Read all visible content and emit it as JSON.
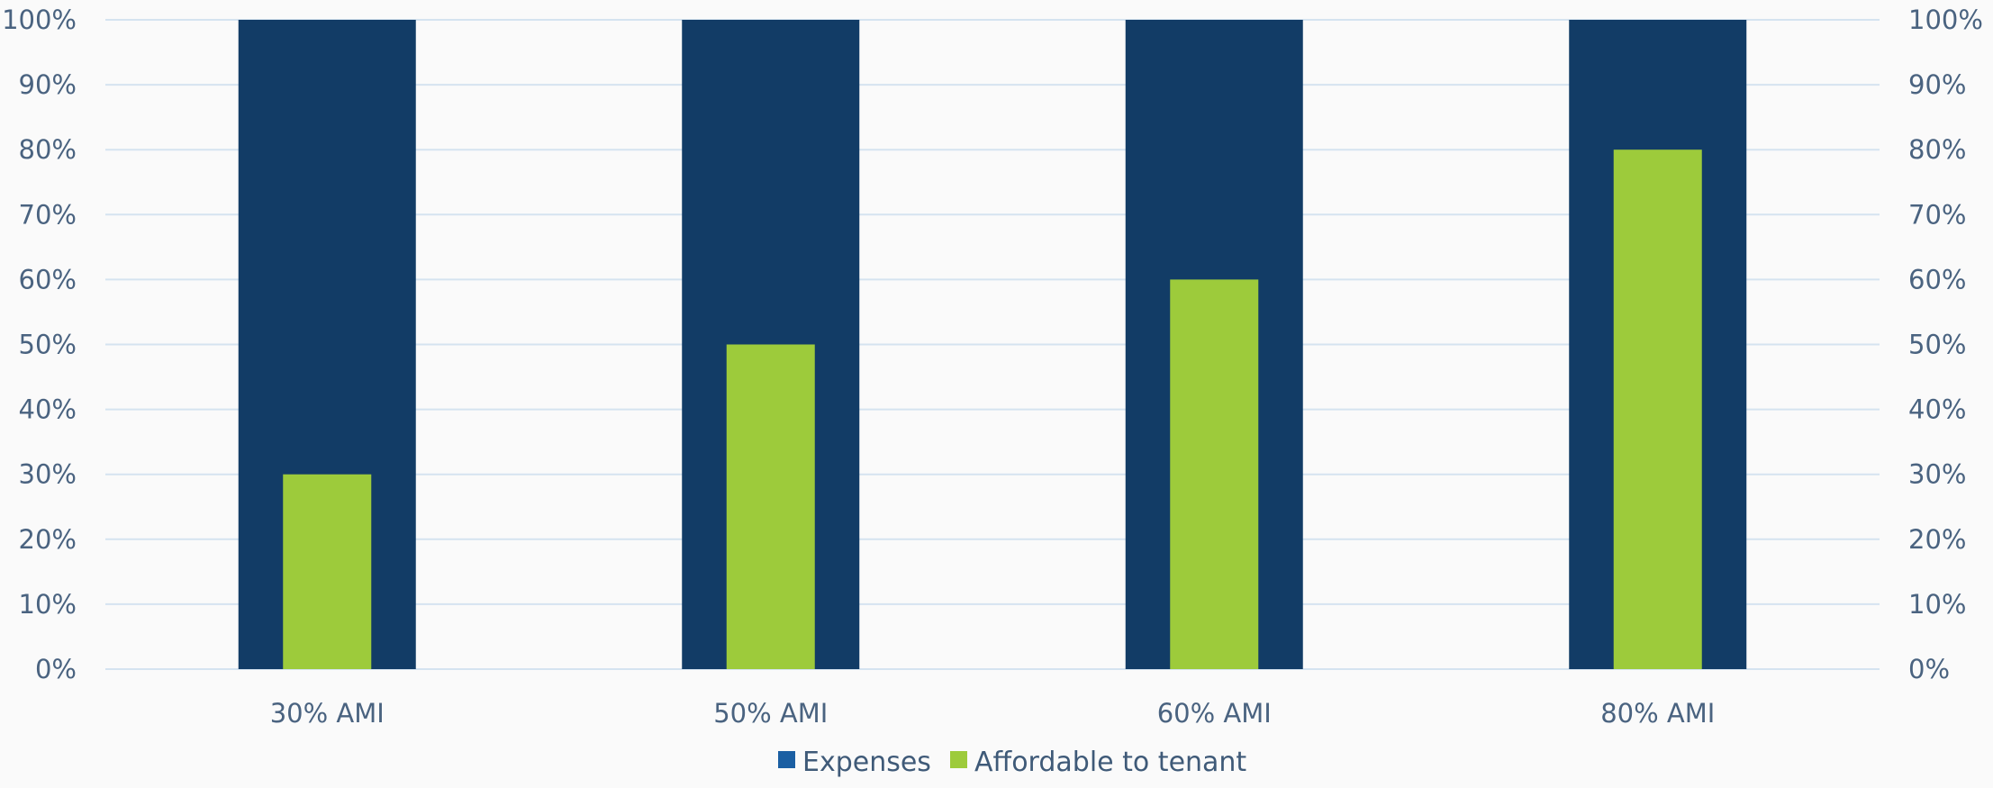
{
  "chart_data": {
    "type": "bar",
    "categories": [
      "30% AMI",
      "50% AMI",
      "60% AMI",
      "80% AMI"
    ],
    "series": [
      {
        "name": "Expenses",
        "values": [
          100,
          100,
          100,
          100
        ],
        "color": "#123c66",
        "legend_color": "#1b5fa3"
      },
      {
        "name": "Affordable to tenant",
        "values": [
          30,
          50,
          60,
          80
        ],
        "color": "#9dcb3b",
        "legend_color": "#9dcb3b"
      }
    ],
    "ylim": [
      0,
      100
    ],
    "y_ticks": [
      "0%",
      "10%",
      "20%",
      "30%",
      "40%",
      "50%",
      "60%",
      "70%",
      "80%",
      "90%",
      "100%"
    ],
    "y_tick_values": [
      0,
      10,
      20,
      30,
      40,
      50,
      60,
      70,
      80,
      90,
      100
    ],
    "secondary_y_axis": true,
    "grid": true,
    "grid_color": "#d5e3f0",
    "axis_text_color": "#4a6380",
    "legend_position": "bottom",
    "background": "#fafafa"
  }
}
